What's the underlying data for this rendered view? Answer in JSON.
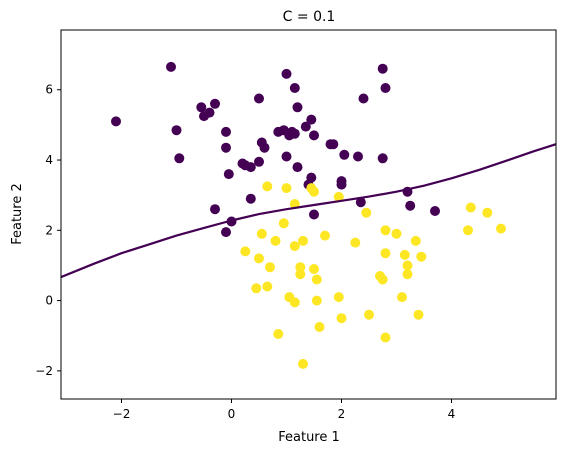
{
  "chart_data": {
    "type": "scatter",
    "title": "C = 0.1",
    "xlabel": "Feature 1",
    "ylabel": "Feature 2",
    "xlim": [
      -3.1,
      5.9
    ],
    "ylim": [
      -2.8,
      7.7
    ],
    "xticks": [
      -2,
      0,
      2,
      4
    ],
    "yticks": [
      -2,
      0,
      2,
      4,
      6
    ],
    "xtick_labels": [
      "−2",
      "0",
      "2",
      "4"
    ],
    "ytick_labels": [
      "−2",
      "0",
      "2",
      "4",
      "6"
    ],
    "grid": false,
    "legend": "none",
    "series": [
      {
        "color": "#440154",
        "points": [
          [
            -2.1,
            5.1
          ],
          [
            -1.1,
            6.65
          ],
          [
            -1.0,
            4.85
          ],
          [
            -0.95,
            4.05
          ],
          [
            -0.55,
            5.5
          ],
          [
            -0.5,
            5.25
          ],
          [
            -0.4,
            5.35
          ],
          [
            -0.3,
            5.6
          ],
          [
            -0.1,
            4.8
          ],
          [
            -0.1,
            4.35
          ],
          [
            -0.1,
            1.95
          ],
          [
            -0.05,
            3.6
          ],
          [
            0.0,
            2.25
          ],
          [
            -0.3,
            2.6
          ],
          [
            0.2,
            3.9
          ],
          [
            0.25,
            3.85
          ],
          [
            0.35,
            3.8
          ],
          [
            0.35,
            2.9
          ],
          [
            0.5,
            5.75
          ],
          [
            0.5,
            3.95
          ],
          [
            0.55,
            4.5
          ],
          [
            0.6,
            4.35
          ],
          [
            0.85,
            4.8
          ],
          [
            1.0,
            6.45
          ],
          [
            0.95,
            4.85
          ],
          [
            1.05,
            4.7
          ],
          [
            1.1,
            4.8
          ],
          [
            1.15,
            4.75
          ],
          [
            1.15,
            6.05
          ],
          [
            1.0,
            4.1
          ],
          [
            1.2,
            3.8
          ],
          [
            1.2,
            5.5
          ],
          [
            1.35,
            4.95
          ],
          [
            1.45,
            5.15
          ],
          [
            1.45,
            3.5
          ],
          [
            1.4,
            3.3
          ],
          [
            1.5,
            4.7
          ],
          [
            1.5,
            2.45
          ],
          [
            1.8,
            4.45
          ],
          [
            1.85,
            4.45
          ],
          [
            2.05,
            4.15
          ],
          [
            2.0,
            3.3
          ],
          [
            2.0,
            3.4
          ],
          [
            2.3,
            4.1
          ],
          [
            2.4,
            5.75
          ],
          [
            2.75,
            6.6
          ],
          [
            2.8,
            6.05
          ],
          [
            2.75,
            4.05
          ],
          [
            3.2,
            3.1
          ],
          [
            3.25,
            2.7
          ],
          [
            3.7,
            2.55
          ],
          [
            2.35,
            2.8
          ]
        ]
      },
      {
        "color": "#fde725",
        "points": [
          [
            0.65,
            3.25
          ],
          [
            1.0,
            3.2
          ],
          [
            1.45,
            3.2
          ],
          [
            1.5,
            3.1
          ],
          [
            1.15,
            2.75
          ],
          [
            0.55,
            1.9
          ],
          [
            0.8,
            1.7
          ],
          [
            0.95,
            2.2
          ],
          [
            1.15,
            1.55
          ],
          [
            1.3,
            1.7
          ],
          [
            1.7,
            1.85
          ],
          [
            0.25,
            1.4
          ],
          [
            0.5,
            1.2
          ],
          [
            0.7,
            0.95
          ],
          [
            1.25,
            0.95
          ],
          [
            1.25,
            0.75
          ],
          [
            1.55,
            0.6
          ],
          [
            1.5,
            0.9
          ],
          [
            0.45,
            0.35
          ],
          [
            0.65,
            0.4
          ],
          [
            1.05,
            0.1
          ],
          [
            1.15,
            -0.05
          ],
          [
            1.55,
            0.0
          ],
          [
            1.95,
            0.1
          ],
          [
            1.6,
            -0.75
          ],
          [
            2.0,
            -0.5
          ],
          [
            0.85,
            -0.95
          ],
          [
            1.3,
            -1.8
          ],
          [
            2.25,
            1.65
          ],
          [
            2.45,
            2.5
          ],
          [
            2.8,
            2.0
          ],
          [
            2.8,
            1.35
          ],
          [
            3.0,
            1.9
          ],
          [
            3.15,
            1.3
          ],
          [
            3.2,
            1.0
          ],
          [
            3.2,
            0.75
          ],
          [
            3.35,
            1.7
          ],
          [
            3.45,
            1.25
          ],
          [
            2.7,
            0.7
          ],
          [
            2.75,
            0.6
          ],
          [
            3.1,
            0.1
          ],
          [
            2.5,
            -0.4
          ],
          [
            3.4,
            -0.4
          ],
          [
            2.8,
            -1.05
          ],
          [
            4.3,
            2.0
          ],
          [
            4.35,
            2.65
          ],
          [
            4.65,
            2.5
          ],
          [
            4.9,
            2.05
          ],
          [
            1.95,
            2.95
          ]
        ]
      }
    ],
    "decision_boundary": {
      "color": "#440154",
      "x": [
        -3.1,
        -2.5,
        -2.0,
        -1.5,
        -1.0,
        -0.5,
        0.0,
        0.5,
        1.0,
        1.5,
        2.0,
        2.5,
        3.0,
        3.5,
        4.0,
        4.5,
        5.0,
        5.5,
        5.9
      ],
      "y": [
        0.67,
        1.05,
        1.35,
        1.6,
        1.85,
        2.07,
        2.28,
        2.46,
        2.6,
        2.72,
        2.84,
        2.96,
        3.1,
        3.27,
        3.48,
        3.72,
        3.98,
        4.25,
        4.45
      ]
    }
  }
}
